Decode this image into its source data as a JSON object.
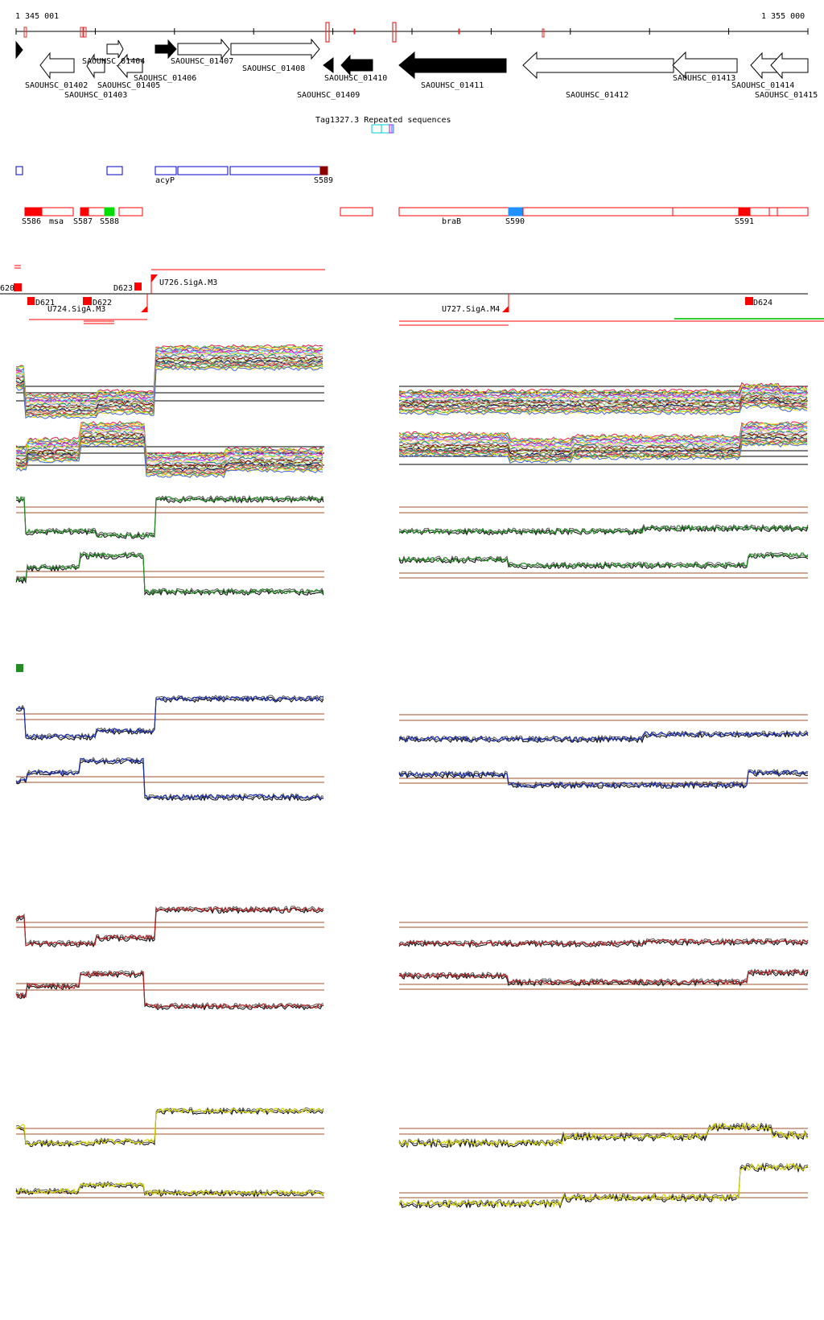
{
  "axis": {
    "start_label": "1 345 001",
    "end_label": "1 355 000"
  },
  "genes": {
    "labels": [
      "SAOUHSC_01402",
      "SAOUHSC_01403",
      "SAOUHSC_01404",
      "SAOUHSC_01405",
      "SAOUHSC_01406",
      "SAOUHSC_01407",
      "SAOUHSC_01408",
      "SAOUHSC_01409",
      "SAOUHSC_01410",
      "SAOUHSC_01411",
      "SAOUHSC_01412",
      "SAOUHSC_01413",
      "SAOUHSC_01414",
      "SAOUHSC_01415"
    ]
  },
  "repeats": {
    "label": "Tag1327.3 Repeated sequences"
  },
  "transcribed": {
    "labels": [
      "acyP",
      "S589"
    ]
  },
  "regulatory": {
    "labels": [
      "S586",
      "msa",
      "S587",
      "S588",
      "braB",
      "S590",
      "S591"
    ]
  },
  "segments": {
    "labels": [
      "620",
      "D621",
      "U724.SigA.M3",
      "D622",
      "D623",
      "U726.SigA.M3",
      "U727.SigA.M4",
      "D624"
    ]
  },
  "colors": {
    "gene_filled": "#000000",
    "gene_open": "#ffffff",
    "blue_box": "#0000cc",
    "red_box": "#ff0000",
    "dark_red_box": "#8b0000",
    "green_box": "#00cc00",
    "blue_fill": "#1e90ff",
    "green_track": "#228b22",
    "blue_track": "#1a2fb0",
    "red_track": "#b22222",
    "yellow_track": "#d4d400",
    "threshold_line": "#a0522d"
  }
}
